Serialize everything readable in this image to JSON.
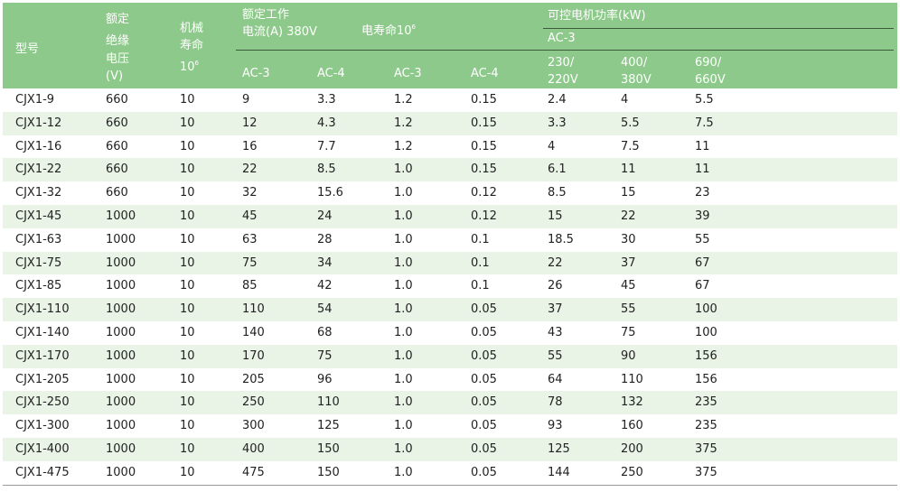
{
  "header": {
    "model": "型号",
    "voltage": [
      "额定",
      "绝缘",
      "电压",
      "(V)"
    ],
    "mech_life": [
      "机械",
      "寿命"
    ],
    "mech_life_base": "10",
    "mech_life_exp": "6",
    "current": [
      "额定工作",
      "电流(A) 380V"
    ],
    "elec_life_label": "电寿命10",
    "elec_life_exp": "6",
    "power": "可控电机功率(kW)",
    "power_sub": "AC-3",
    "ac3": "AC-3",
    "ac4": "AC-4",
    "ac3b": "AC-3",
    "ac4b": "AC-4",
    "v230": [
      "230/",
      "220V"
    ],
    "v400": [
      "400/",
      "380V"
    ],
    "v690": [
      "690/",
      "660V"
    ]
  },
  "rows": [
    [
      "CJX1-9",
      "660",
      "10",
      "9",
      "3.3",
      "1.2",
      "0.15",
      "2.4",
      "4",
      "5.5"
    ],
    [
      "CJX1-12",
      "660",
      "10",
      "12",
      "4.3",
      "1.2",
      "0.15",
      "3.3",
      "5.5",
      "7.5"
    ],
    [
      "CJX1-16",
      "660",
      "10",
      "16",
      "7.7",
      "1.2",
      "0.15",
      "4",
      "7.5",
      "11"
    ],
    [
      "CJX1-22",
      "660",
      "10",
      "22",
      "8.5",
      "1.0",
      "0.15",
      "6.1",
      "11",
      "11"
    ],
    [
      "CJX1-32",
      "660",
      "10",
      "32",
      "15.6",
      "1.0",
      "0.12",
      "8.5",
      "15",
      "23"
    ],
    [
      "CJX1-45",
      "1000",
      "10",
      "45",
      "24",
      "1.0",
      "0.12",
      "15",
      "22",
      "39"
    ],
    [
      "CJX1-63",
      "1000",
      "10",
      "63",
      "28",
      "1.0",
      "0.1",
      "18.5",
      "30",
      "55"
    ],
    [
      "CJX1-75",
      "1000",
      "10",
      "75",
      "34",
      "1.0",
      "0.1",
      "22",
      "37",
      "67"
    ],
    [
      "CJX1-85",
      "1000",
      "10",
      "85",
      "42",
      "1.0",
      "0.1",
      "26",
      "45",
      "67"
    ],
    [
      "CJX1-110",
      "1000",
      "10",
      "110",
      "54",
      "1.0",
      "0.05",
      "37",
      "55",
      "100"
    ],
    [
      "CJX1-140",
      "1000",
      "10",
      "140",
      "68",
      "1.0",
      "0.05",
      "43",
      "75",
      "100"
    ],
    [
      "CJX1-170",
      "1000",
      "10",
      "170",
      "75",
      "1.0",
      "0.05",
      "55",
      "90",
      "156"
    ],
    [
      "CJX1-205",
      "1000",
      "10",
      "205",
      "96",
      "1.0",
      "0.05",
      "64",
      "110",
      "156"
    ],
    [
      "CJX1-250",
      "1000",
      "10",
      "250",
      "110",
      "1.0",
      "0.05",
      "78",
      "132",
      "235"
    ],
    [
      "CJX1-300",
      "1000",
      "10",
      "300",
      "125",
      "1.0",
      "0.05",
      "93",
      "160",
      "235"
    ],
    [
      "CJX1-400",
      "1000",
      "10",
      "400",
      "150",
      "1.0",
      "0.05",
      "125",
      "200",
      "375"
    ],
    [
      "CJX1-475",
      "1000",
      "10",
      "475",
      "150",
      "1.0",
      "0.05",
      "144",
      "250",
      "375"
    ]
  ]
}
